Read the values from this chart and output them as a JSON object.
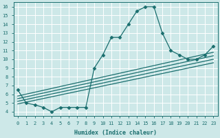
{
  "xlabel": "Humidex (Indice chaleur)",
  "bg_color": "#cde8e8",
  "grid_color": "#b8d8d8",
  "line_color": "#1a6e6e",
  "xlim": [
    -0.5,
    23.5
  ],
  "ylim": [
    3.5,
    16.5
  ],
  "yticks": [
    4,
    5,
    6,
    7,
    8,
    9,
    10,
    11,
    12,
    13,
    14,
    15,
    16
  ],
  "xticks": [
    0,
    1,
    2,
    3,
    4,
    5,
    6,
    7,
    8,
    9,
    10,
    11,
    12,
    13,
    14,
    15,
    16,
    17,
    18,
    19,
    20,
    21,
    22,
    23
  ],
  "series_main_x": [
    0,
    1,
    2,
    3,
    4,
    5,
    6,
    7,
    8,
    9,
    10,
    11,
    12,
    13,
    14,
    15,
    16,
    17,
    18,
    19,
    20,
    21,
    22,
    23
  ],
  "series_main_y": [
    6.5,
    5.0,
    4.8,
    4.5,
    4.0,
    4.5,
    4.5,
    4.5,
    4.5,
    9.0,
    10.5,
    12.5,
    12.5,
    14.0,
    15.5,
    16.0,
    16.0,
    13.0,
    11.0,
    10.5,
    10.0,
    10.0,
    10.5,
    11.5
  ],
  "series_lines": [
    {
      "x0": 0,
      "x1": 23,
      "y0": 5.8,
      "y1": 10.8
    },
    {
      "x0": 0,
      "x1": 23,
      "y0": 5.5,
      "y1": 10.4
    },
    {
      "x0": 0,
      "x1": 23,
      "y0": 5.2,
      "y1": 10.0
    },
    {
      "x0": 0,
      "x1": 23,
      "y0": 4.9,
      "y1": 9.6
    }
  ],
  "marker": "D",
  "markersize": 2.5,
  "linewidth": 0.9
}
